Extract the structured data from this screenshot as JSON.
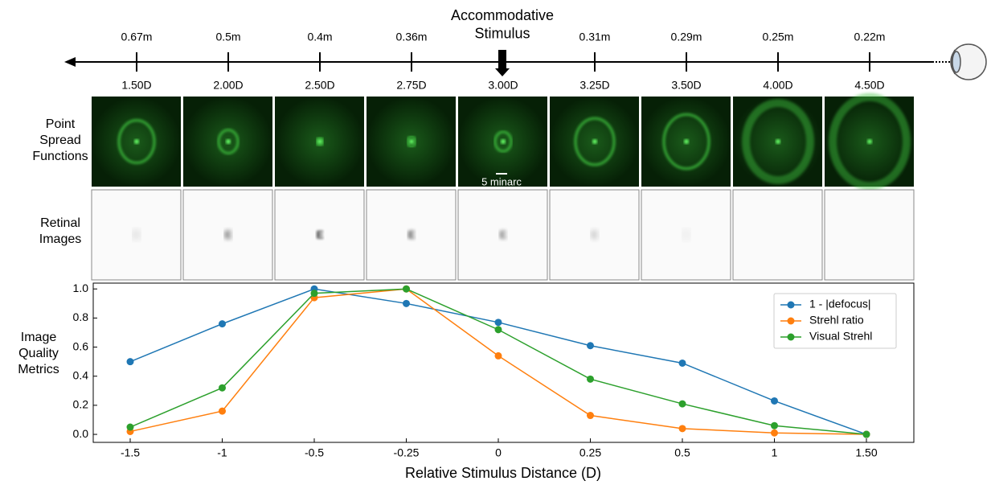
{
  "stimulus_axis": {
    "title": "Accommodative Stimulus",
    "distances": [
      "0.67m",
      "0.5m",
      "0.4m",
      "0.36m",
      null,
      "0.31m",
      "0.29m",
      "0.25m",
      "0.22m"
    ],
    "diopters": [
      "1.50D",
      "2.00D",
      "2.50D",
      "2.75D",
      "3.00D",
      "3.25D",
      "3.50D",
      "4.00D",
      "4.50D"
    ]
  },
  "row_labels": {
    "psf": "Point Spread Functions",
    "retinal": "Retinal Images"
  },
  "scale_bar": "5 minarc",
  "chart_data": {
    "type": "line",
    "ylabel": "Image Quality Metrics",
    "xlabel": "Relative Stimulus Distance (D)",
    "categories": [
      "-1.5",
      "-1",
      "-0.5",
      "-0.25",
      "0",
      "0.25",
      "0.5",
      "1",
      "1.50"
    ],
    "series": [
      {
        "name": "1 - |defocus|",
        "color": "#1f77b4",
        "values": [
          0.5,
          0.76,
          1.0,
          0.9,
          0.77,
          0.61,
          0.49,
          0.23,
          0.0
        ]
      },
      {
        "name": "Strehl ratio",
        "color": "#ff7f0e",
        "values": [
          0.02,
          0.16,
          0.94,
          1.0,
          0.54,
          0.13,
          0.04,
          0.01,
          0.0
        ]
      },
      {
        "name": "Visual Strehl",
        "color": "#2ca02c",
        "values": [
          0.05,
          0.32,
          0.97,
          1.0,
          0.72,
          0.38,
          0.21,
          0.06,
          0.0
        ]
      }
    ],
    "ylim": [
      -0.055,
      1.04
    ],
    "yticks": [
      {
        "value": 0,
        "label": "0.0"
      },
      0.2,
      0.4,
      0.6,
      0.8,
      {
        "value": 1,
        "label": "1.0"
      }
    ],
    "legend": "upper right"
  }
}
